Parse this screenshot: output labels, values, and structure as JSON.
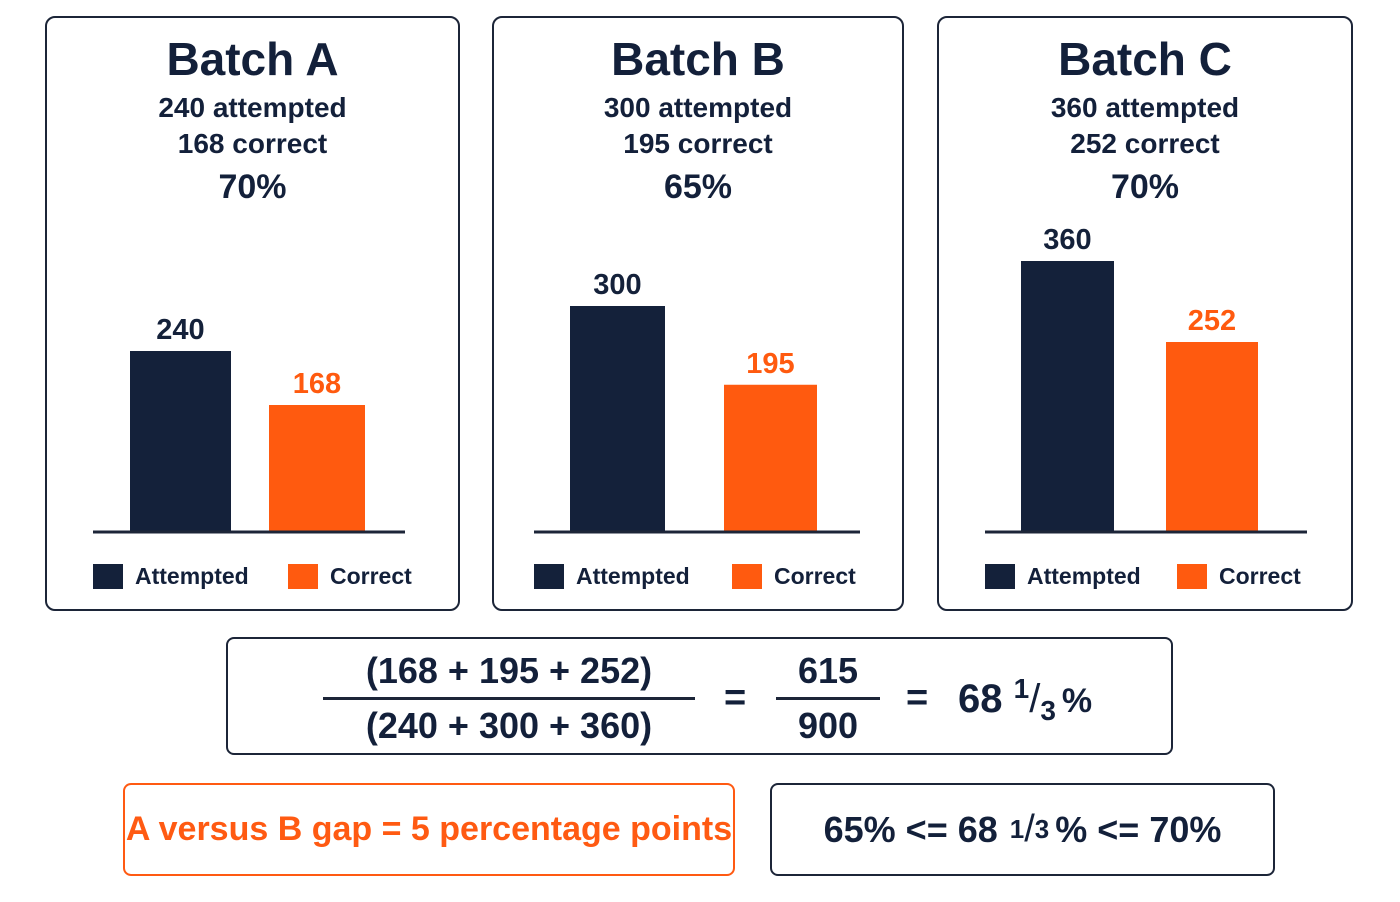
{
  "colors": {
    "attempted": "#14213a",
    "correct": "#ff5a0f",
    "axis": "#1c2538"
  },
  "chart_data": [
    {
      "type": "bar",
      "title": "Batch A",
      "subtitle_lines": [
        "240 attempted",
        "168 correct",
        "70%"
      ],
      "categories": [
        "Attempted",
        "Correct"
      ],
      "values": [
        240,
        168
      ],
      "data_labels": [
        "240",
        "168"
      ],
      "legend": [
        "Attempted",
        "Correct"
      ],
      "legend_position": "bottom",
      "grid": false
    },
    {
      "type": "bar",
      "title": "Batch B",
      "subtitle_lines": [
        "300 attempted",
        "195 correct",
        "65%"
      ],
      "categories": [
        "Attempted",
        "Correct"
      ],
      "values": [
        300,
        195
      ],
      "data_labels": [
        "300",
        "195"
      ],
      "legend": [
        "Attempted",
        "Correct"
      ],
      "legend_position": "bottom",
      "grid": false
    },
    {
      "type": "bar",
      "title": "Batch C",
      "subtitle_lines": [
        "360 attempted",
        "252 correct",
        "70%"
      ],
      "categories": [
        "Attempted",
        "Correct"
      ],
      "values": [
        360,
        252
      ],
      "data_labels": [
        "360",
        "252"
      ],
      "legend": [
        "Attempted",
        "Correct"
      ],
      "legend_position": "bottom",
      "grid": false
    }
  ],
  "equation": {
    "numerator": "(168 + 195 + 252)",
    "denominator": "(240 + 300 + 360)",
    "equals": "=",
    "frac2_num": "615",
    "frac2_den": "900",
    "result_whole": "68",
    "result_frac_num": "1",
    "result_frac_slash": "/",
    "result_frac_den": "3",
    "result_pct": "%"
  },
  "gap_note": "A versus B gap = 5 percentage points",
  "range_note": {
    "left": "65% <= 68",
    "frac_num": "1",
    "frac_slash": "/",
    "frac_den": "3",
    "right": "% <= 70%"
  }
}
